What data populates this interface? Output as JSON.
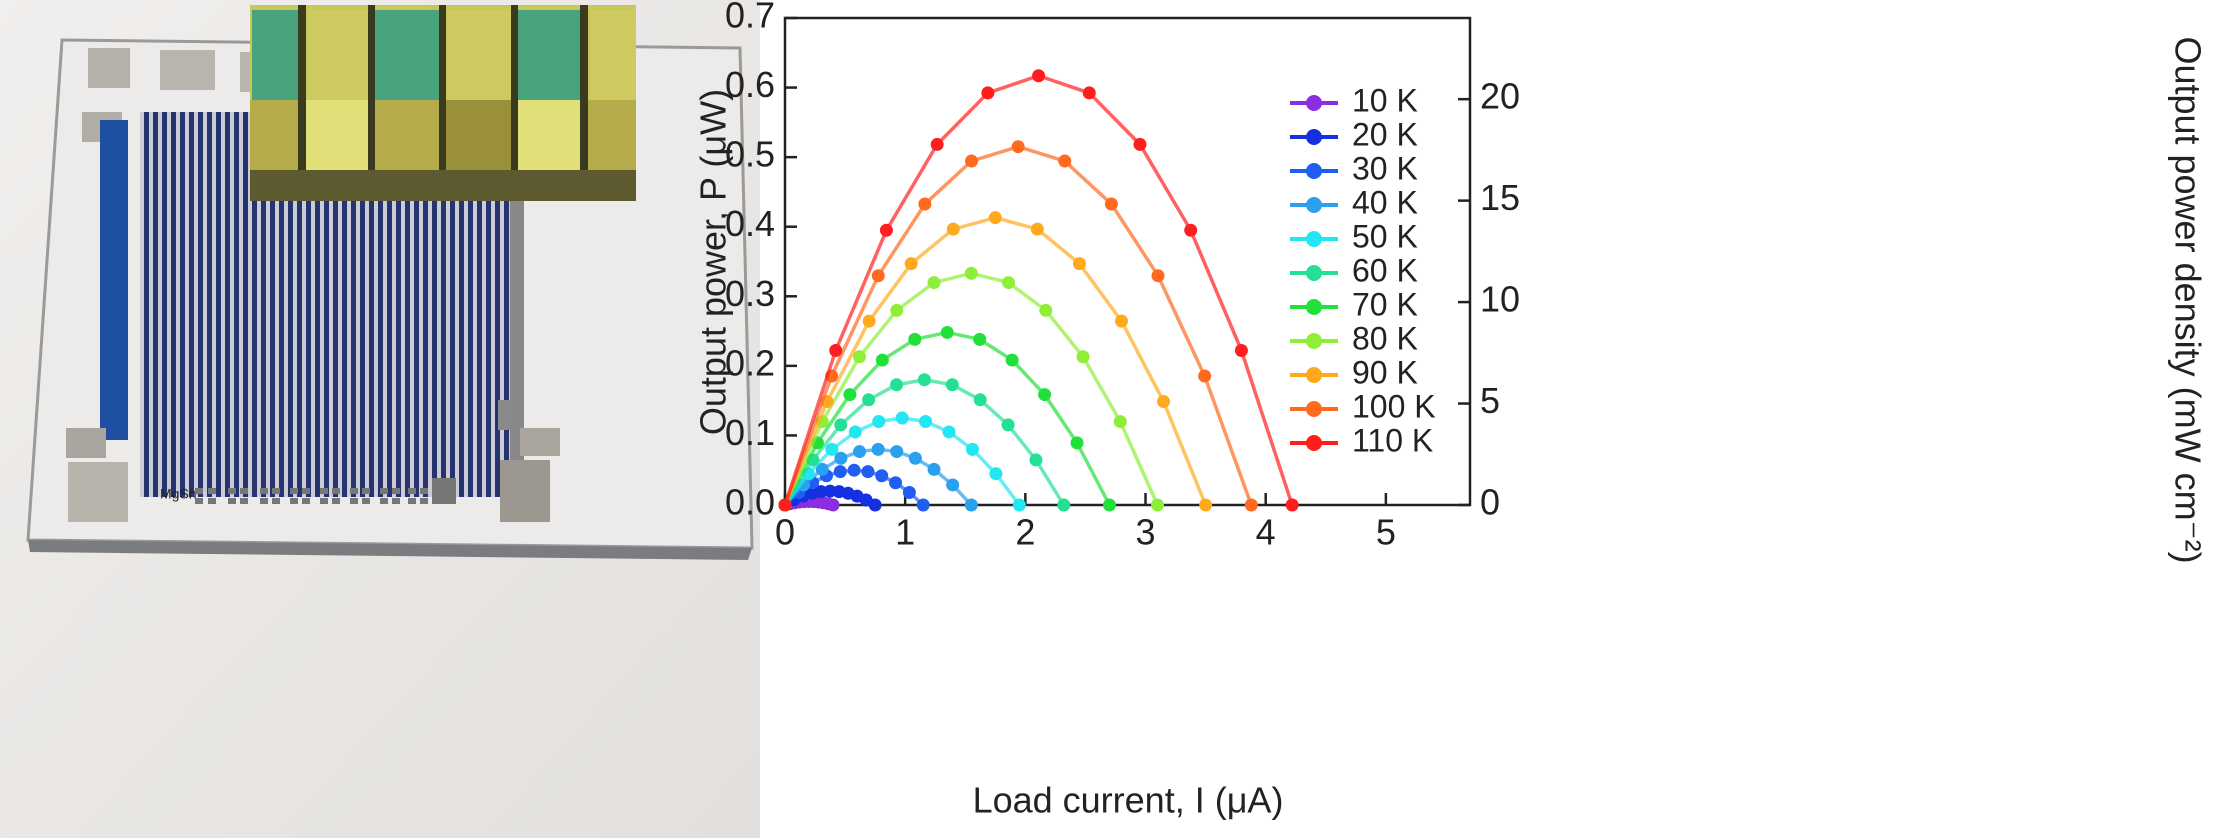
{
  "photo_label": "MgSn",
  "chart_data": {
    "type": "line",
    "xlabel": "Load current, I (μA)",
    "ylabel": "Output power, P (μW)",
    "y2label": "Output power density (mW cm⁻²)",
    "xlim": [
      0,
      5.7
    ],
    "ylim": [
      0,
      0.7
    ],
    "y2lim": [
      0,
      24
    ],
    "xticks": [
      0,
      1,
      2,
      3,
      4,
      5
    ],
    "yticks": [
      {
        "value": 0,
        "label": "0.0"
      },
      0.1,
      0.2,
      0.3,
      0.4,
      0.5,
      0.6,
      0.7
    ],
    "y2ticks": [
      0,
      5,
      10,
      15,
      20
    ],
    "legend": "upper right",
    "markers": true,
    "series": [
      {
        "name": "10 K",
        "color": "#8a2ee0",
        "x": [
          0,
          0.04,
          0.08,
          0.12,
          0.16,
          0.2,
          0.24,
          0.28,
          0.32,
          0.36,
          0.4
        ],
        "values": [
          0,
          0.0018,
          0.0032,
          0.0042,
          0.0048,
          0.005,
          0.0048,
          0.0042,
          0.0032,
          0.0018,
          0
        ]
      },
      {
        "name": "20 K",
        "color": "#1530e0",
        "x": [
          0,
          0.075,
          0.15,
          0.225,
          0.3,
          0.375,
          0.45,
          0.525,
          0.6,
          0.675,
          0.75
        ],
        "values": [
          0,
          0.0072,
          0.0128,
          0.0168,
          0.0192,
          0.02,
          0.0192,
          0.0168,
          0.0128,
          0.0072,
          0
        ]
      },
      {
        "name": "30 K",
        "color": "#1f5ef0",
        "x": [
          0,
          0.115,
          0.23,
          0.345,
          0.46,
          0.575,
          0.69,
          0.805,
          0.92,
          1.035,
          1.15
        ],
        "values": [
          0,
          0.018,
          0.032,
          0.042,
          0.048,
          0.05,
          0.048,
          0.042,
          0.032,
          0.018,
          0
        ]
      },
      {
        "name": "40 K",
        "color": "#2aa0ee",
        "x": [
          0,
          0.155,
          0.31,
          0.465,
          0.62,
          0.775,
          0.93,
          1.085,
          1.24,
          1.395,
          1.55
        ],
        "values": [
          0,
          0.0288,
          0.0512,
          0.0672,
          0.0768,
          0.08,
          0.0768,
          0.0672,
          0.0512,
          0.0288,
          0
        ]
      },
      {
        "name": "50 K",
        "color": "#22e6f2",
        "x": [
          0,
          0.195,
          0.39,
          0.585,
          0.78,
          0.975,
          1.17,
          1.365,
          1.56,
          1.755,
          1.95
        ],
        "values": [
          0,
          0.045,
          0.08,
          0.105,
          0.12,
          0.125,
          0.12,
          0.105,
          0.08,
          0.045,
          0
        ]
      },
      {
        "name": "60 K",
        "color": "#25df95",
        "x": [
          0,
          0.232,
          0.464,
          0.696,
          0.928,
          1.16,
          1.392,
          1.624,
          1.856,
          2.088,
          2.32
        ],
        "values": [
          0,
          0.0648,
          0.1152,
          0.1512,
          0.1728,
          0.18,
          0.1728,
          0.1512,
          0.1152,
          0.0648,
          0
        ]
      },
      {
        "name": "70 K",
        "color": "#22e03a",
        "x": [
          0,
          0.27,
          0.54,
          0.81,
          1.08,
          1.35,
          1.62,
          1.89,
          2.16,
          2.43,
          2.7
        ],
        "values": [
          0,
          0.0893,
          0.1587,
          0.2083,
          0.2381,
          0.248,
          0.2381,
          0.2083,
          0.1587,
          0.0893,
          0
        ]
      },
      {
        "name": "80 K",
        "color": "#8fee38",
        "x": [
          0,
          0.31,
          0.62,
          0.93,
          1.24,
          1.55,
          1.86,
          2.17,
          2.48,
          2.79,
          3.1
        ],
        "values": [
          0,
          0.1199,
          0.2131,
          0.2797,
          0.3197,
          0.333,
          0.3197,
          0.2797,
          0.2131,
          0.1199,
          0
        ]
      },
      {
        "name": "90 K",
        "color": "#ffaa1e",
        "x": [
          0,
          0.35,
          0.7,
          1.05,
          1.4,
          1.75,
          2.1,
          2.45,
          2.8,
          3.15,
          3.5
        ],
        "values": [
          0,
          0.1487,
          0.2643,
          0.3469,
          0.3965,
          0.413,
          0.3965,
          0.3469,
          0.2643,
          0.1487,
          0
        ]
      },
      {
        "name": "100 K",
        "color": "#ff6a1e",
        "x": [
          0,
          0.388,
          0.776,
          1.164,
          1.552,
          1.94,
          2.328,
          2.716,
          3.104,
          3.492,
          3.88
        ],
        "values": [
          0,
          0.1854,
          0.3296,
          0.4326,
          0.4944,
          0.515,
          0.4944,
          0.4326,
          0.3296,
          0.1854,
          0
        ]
      },
      {
        "name": "110 K",
        "color": "#ff1e1e",
        "x": [
          0,
          0.422,
          0.844,
          1.266,
          1.688,
          2.11,
          2.532,
          2.954,
          3.376,
          3.798,
          4.22
        ],
        "values": [
          0,
          0.2221,
          0.3949,
          0.5183,
          0.5923,
          0.617,
          0.5923,
          0.5183,
          0.3949,
          0.2221,
          0
        ]
      }
    ]
  }
}
